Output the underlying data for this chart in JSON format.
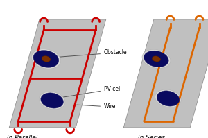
{
  "bg_color": "#ffffff",
  "panel_color": "#c0c0c0",
  "panel_edge_color": "#888888",
  "wire_color_parallel": "#cc0000",
  "wire_color_series": "#dd6600",
  "pv_outer_color": "#0a0a60",
  "pv_inner_color": "#7b3000",
  "pv_rim_color": "#d8d8d8",
  "label_obstacle": "Obstacle",
  "label_pvcell": "PV cell",
  "label_wire": "Wire",
  "label_parallel": "In Parallel",
  "label_series": "In Series",
  "annotation_color": "#555555"
}
